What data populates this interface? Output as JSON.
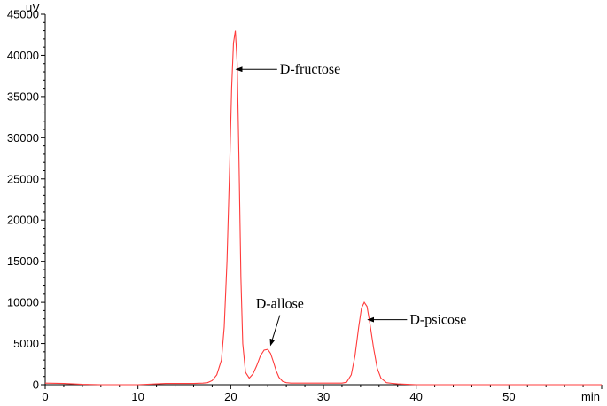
{
  "chart_data": {
    "type": "line",
    "title": "",
    "xlabel": "min",
    "ylabel": "uV",
    "xlim": [
      0,
      60
    ],
    "ylim": [
      0,
      45000
    ],
    "x_ticks": [
      0,
      10,
      20,
      30,
      40,
      50
    ],
    "x_tick_labels": [
      "0",
      "10",
      "20",
      "30",
      "40",
      "50"
    ],
    "y_ticks": [
      0,
      5000,
      10000,
      15000,
      20000,
      25000,
      30000,
      35000,
      40000,
      45000
    ],
    "y_tick_labels": [
      "0",
      "5000",
      "10000",
      "15000",
      "20000",
      "25000",
      "30000",
      "35000",
      "40000",
      "45000"
    ],
    "grid": false,
    "line_color": "#ff3b3b",
    "series": [
      {
        "x": [
          0,
          2,
          4,
          6,
          8,
          10,
          12,
          13,
          14,
          15,
          16,
          17,
          17.5,
          18,
          18.5,
          19,
          19.3,
          19.6,
          19.9,
          20.1,
          20.3,
          20.5,
          20.7,
          20.9,
          21.1,
          21.3,
          21.6,
          22,
          22.4,
          22.8,
          23.2,
          23.6,
          24,
          24.3,
          24.6,
          24.9,
          25.2,
          25.6,
          26,
          26.5,
          27,
          28,
          29,
          30,
          31,
          32,
          32.5,
          33,
          33.4,
          33.8,
          34.1,
          34.4,
          34.7,
          35,
          35.4,
          35.8,
          36.2,
          36.8,
          37.5,
          38,
          39,
          40,
          42,
          44,
          46,
          48,
          50,
          52,
          54,
          56,
          58,
          60
        ],
        "y": [
          200,
          150,
          50,
          0,
          0,
          0,
          100,
          150,
          150,
          150,
          150,
          200,
          250,
          500,
          1200,
          3000,
          7000,
          15000,
          27000,
          36000,
          41500,
          43000,
          39000,
          27000,
          13000,
          5000,
          1500,
          800,
          1300,
          2300,
          3500,
          4200,
          4300,
          3800,
          2800,
          1700,
          900,
          400,
          250,
          200,
          200,
          200,
          200,
          200,
          200,
          200,
          300,
          1200,
          3500,
          7000,
          9300,
          10000,
          9500,
          7500,
          4500,
          2000,
          800,
          250,
          150,
          100,
          50,
          0,
          0,
          0,
          0,
          0,
          0,
          0,
          0,
          0,
          0,
          0
        ]
      }
    ],
    "annotations": [
      {
        "text": "D-fructose",
        "point_x": 20.6,
        "point_y": 38300,
        "text_x": 25.3,
        "text_y": 38300,
        "text_anchor": "start"
      },
      {
        "text": "D-allose",
        "point_x": 24.3,
        "point_y": 4800,
        "text_x": 25.3,
        "text_y": 9300,
        "text_anchor": "middle"
      },
      {
        "text": "D-psicose",
        "point_x": 34.8,
        "point_y": 7900,
        "text_x": 39.3,
        "text_y": 7900,
        "text_anchor": "start"
      }
    ]
  }
}
